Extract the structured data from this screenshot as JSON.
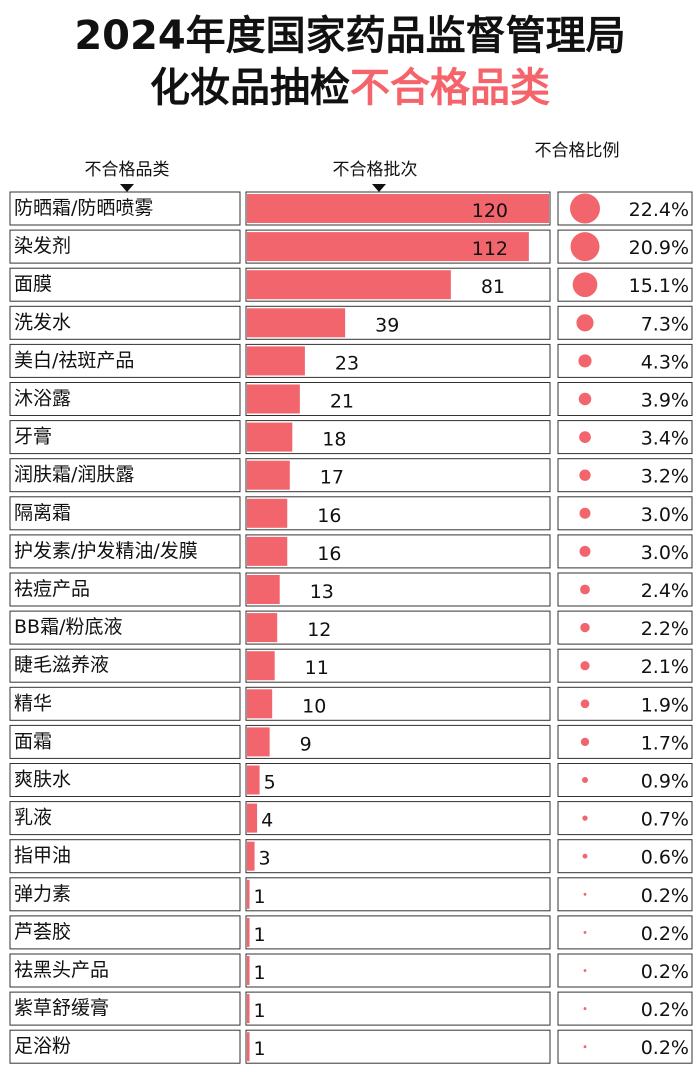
{
  "chart_data": {
    "type": "bar",
    "title_line1": "2024年度国家药品监督管理局",
    "title_line2_black": "化妆品抽检",
    "title_line2_red": "不合格品类",
    "category_header": "不合格品类",
    "value_header": "不合格批次",
    "share_header": "不合格比例",
    "categories": [
      "防晒霜/防晒喷雾",
      "染发剂",
      "面膜",
      "洗发水",
      "美白/祛斑产品",
      "沐浴露",
      "牙膏",
      "润肤霜/润肤露",
      "隔离霜",
      "护发素/护发精油/发膜",
      "祛痘产品",
      "BB霜/粉底液",
      "睫毛滋养液",
      "精华",
      "面霜",
      "爽肤水",
      "乳液",
      "指甲油",
      "弹力素",
      "芦荟胶",
      "祛黑头产品",
      "紫草舒缓膏",
      "足浴粉"
    ],
    "values": [
      120,
      112,
      81,
      39,
      23,
      21,
      18,
      17,
      16,
      16,
      13,
      12,
      11,
      10,
      9,
      5,
      4,
      3,
      1,
      1,
      1,
      1,
      1
    ],
    "shares": [
      22.4,
      20.9,
      15.1,
      7.3,
      4.3,
      3.9,
      3.4,
      3.2,
      3.0,
      3.0,
      2.4,
      2.2,
      2.1,
      1.9,
      1.7,
      0.9,
      0.7,
      0.6,
      0.2,
      0.2,
      0.2,
      0.2,
      0.2
    ],
    "share_labels": [
      "22.4%",
      "20.9%",
      "15.1%",
      "7.3%",
      "4.3%",
      "3.9%",
      "3.4%",
      "3.2%",
      "3.0%",
      "3.0%",
      "2.4%",
      "2.2%",
      "2.1%",
      "1.9%",
      "1.7%",
      "0.9%",
      "0.7%",
      "0.6%",
      "0.2%",
      "0.2%",
      "0.2%",
      "0.2%",
      "0.2%"
    ],
    "xlim": [
      0,
      120
    ],
    "color": "#f2656c",
    "accent_color": "#f5636b"
  }
}
